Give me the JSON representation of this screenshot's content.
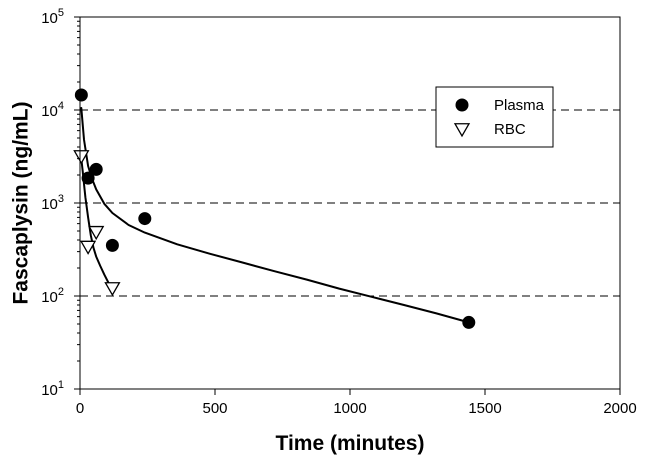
{
  "chart_data": {
    "type": "scatter",
    "xlabel": "Time (minutes)",
    "ylabel": "Fascaplysin (ng/mL)",
    "xlim": [
      0,
      2000
    ],
    "ylim": [
      10,
      100000
    ],
    "yscale": "log",
    "x_ticks": [
      {
        "value": 0,
        "label": "0"
      },
      {
        "value": 500,
        "label": "500"
      },
      {
        "value": 1000,
        "label": "1000"
      },
      {
        "value": 1500,
        "label": "1500"
      },
      {
        "value": 2000,
        "label": "2000"
      }
    ],
    "y_ticks": [
      {
        "value": 10,
        "base": "10",
        "exp": "1"
      },
      {
        "value": 100,
        "base": "10",
        "exp": "2"
      },
      {
        "value": 1000,
        "base": "10",
        "exp": "3"
      },
      {
        "value": 10000,
        "base": "10",
        "exp": "4"
      },
      {
        "value": 100000,
        "base": "10",
        "exp": "5"
      }
    ],
    "gridlines_y": [
      100,
      1000,
      10000
    ],
    "grid_style": "dashed",
    "legend_position": "top-right",
    "series": [
      {
        "name": "Plasma",
        "marker": "filled-circle",
        "color": "#000000",
        "points": [
          {
            "x": 5,
            "y": 14500
          },
          {
            "x": 30,
            "y": 1850
          },
          {
            "x": 60,
            "y": 2300
          },
          {
            "x": 120,
            "y": 350
          },
          {
            "x": 240,
            "y": 680
          },
          {
            "x": 1440,
            "y": 52
          }
        ],
        "fit": [
          {
            "x": 5,
            "y": 10500
          },
          {
            "x": 15,
            "y": 4800
          },
          {
            "x": 30,
            "y": 2500
          },
          {
            "x": 45,
            "y": 1800
          },
          {
            "x": 60,
            "y": 1400
          },
          {
            "x": 90,
            "y": 980
          },
          {
            "x": 120,
            "y": 780
          },
          {
            "x": 180,
            "y": 580
          },
          {
            "x": 240,
            "y": 480
          },
          {
            "x": 360,
            "y": 360
          },
          {
            "x": 480,
            "y": 285
          },
          {
            "x": 600,
            "y": 230
          },
          {
            "x": 720,
            "y": 185
          },
          {
            "x": 840,
            "y": 150
          },
          {
            "x": 960,
            "y": 120
          },
          {
            "x": 1080,
            "y": 98
          },
          {
            "x": 1200,
            "y": 80
          },
          {
            "x": 1320,
            "y": 65
          },
          {
            "x": 1440,
            "y": 52
          }
        ]
      },
      {
        "name": "RBC",
        "marker": "open-down-triangle",
        "color": "#000000",
        "points": [
          {
            "x": 5,
            "y": 3200
          },
          {
            "x": 30,
            "y": 340
          },
          {
            "x": 60,
            "y": 490
          },
          {
            "x": 120,
            "y": 122
          }
        ],
        "fit": [
          {
            "x": 5,
            "y": 3000
          },
          {
            "x": 10,
            "y": 2200
          },
          {
            "x": 15,
            "y": 1600
          },
          {
            "x": 20,
            "y": 1150
          },
          {
            "x": 30,
            "y": 700
          },
          {
            "x": 40,
            "y": 450
          },
          {
            "x": 50,
            "y": 330
          },
          {
            "x": 60,
            "y": 265
          },
          {
            "x": 75,
            "y": 210
          },
          {
            "x": 90,
            "y": 170
          },
          {
            "x": 105,
            "y": 140
          },
          {
            "x": 120,
            "y": 115
          }
        ]
      }
    ]
  }
}
